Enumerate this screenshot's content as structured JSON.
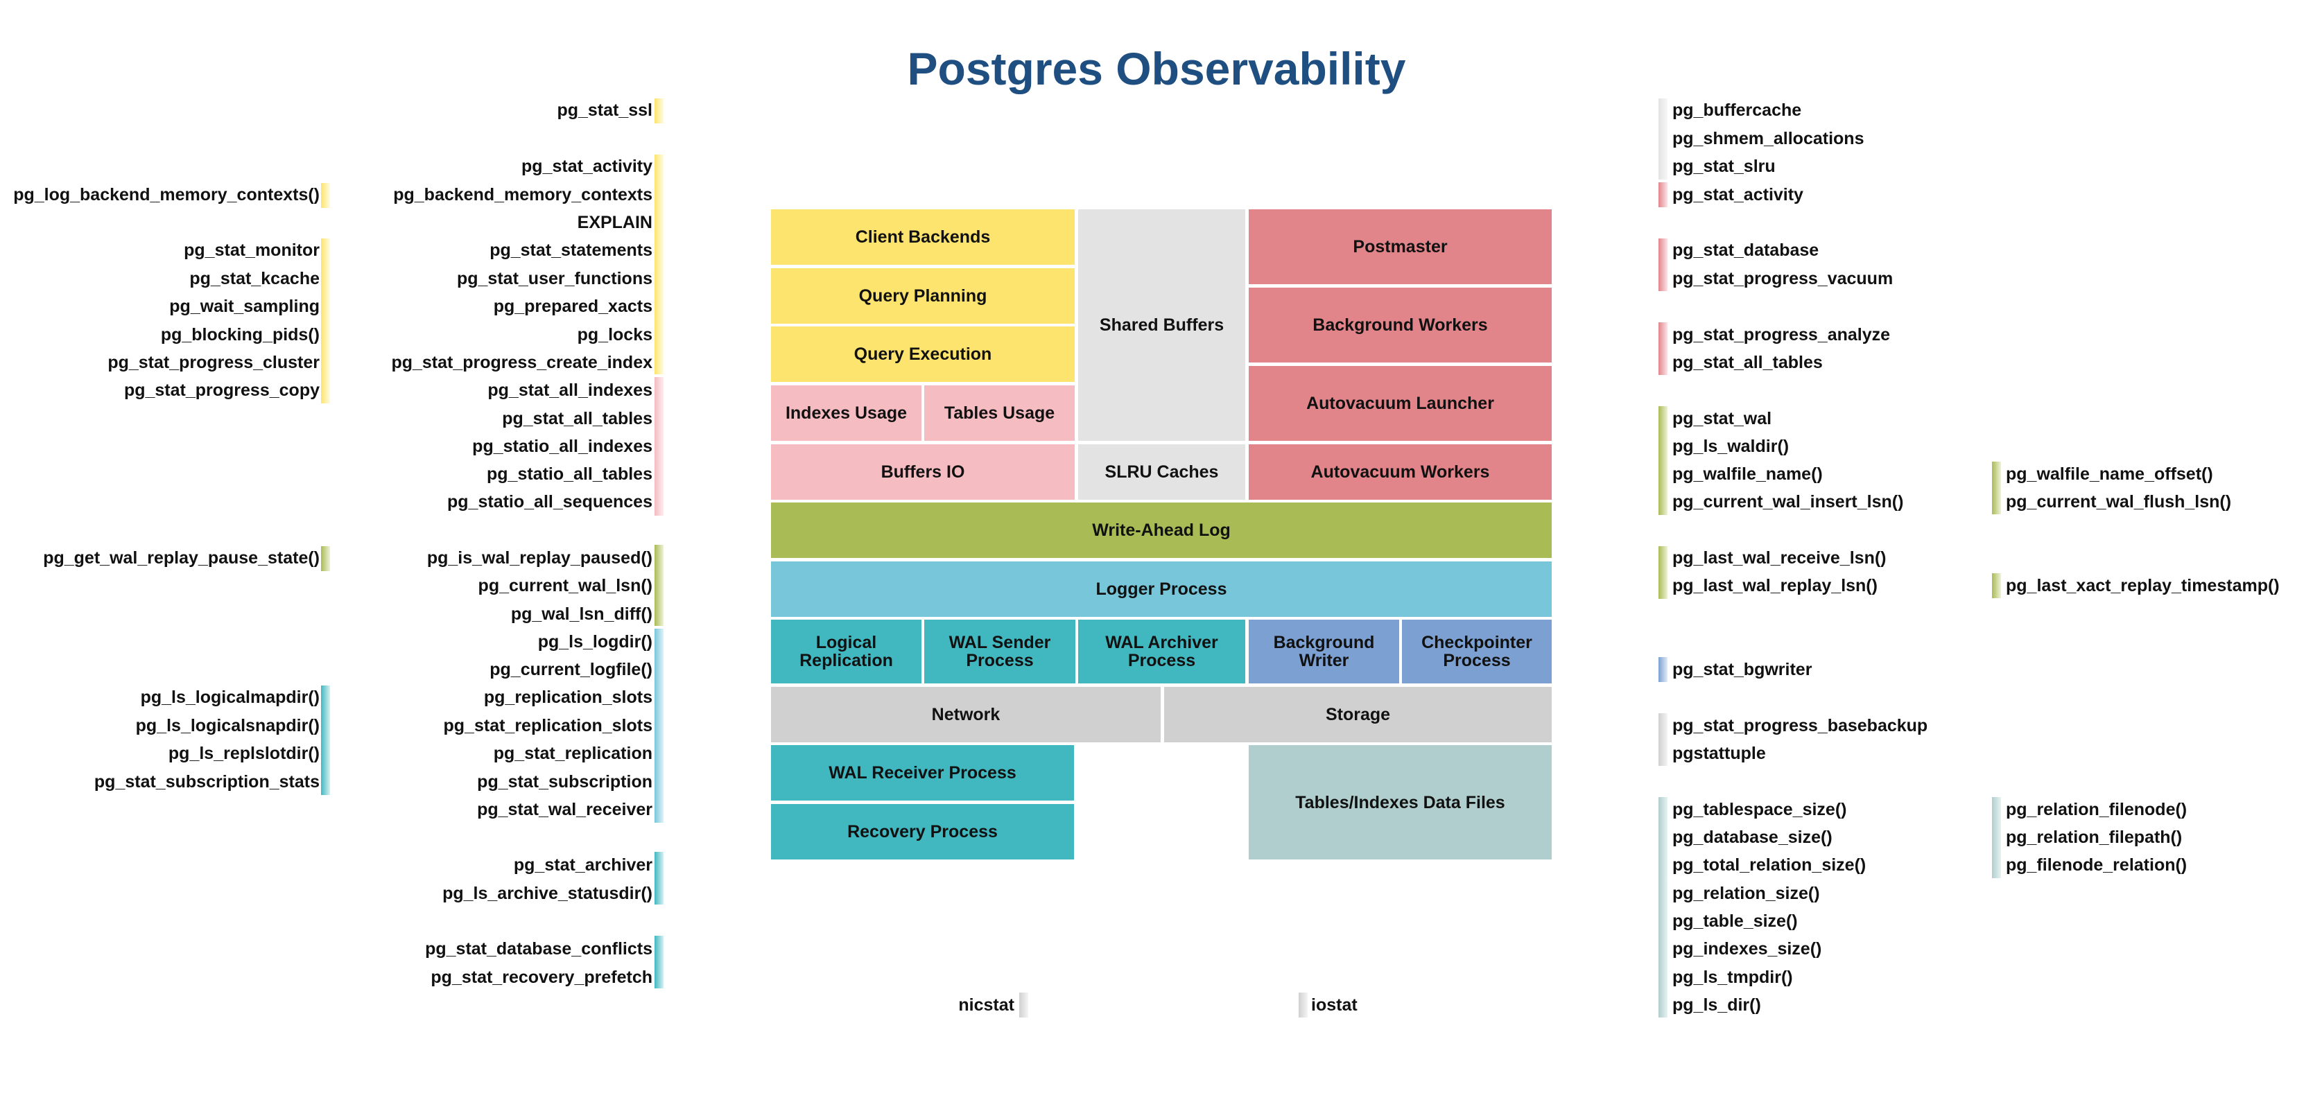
{
  "title": "Postgres Observability",
  "colors": {
    "yellow": "#fde46e",
    "pink": "#f5bcc2",
    "gray": "#e3e3e3",
    "red": "#e1858b",
    "olive": "#a9bb55",
    "sky": "#78c6da",
    "teal": "#41b7c0",
    "blue": "#7ba0d1",
    "net": "#d0d0d0",
    "sage": "#b0cece"
  },
  "blocks": {
    "client_backends": "Client Backends",
    "query_planning": "Query Planning",
    "query_execution": "Query Execution",
    "indexes_usage": "Indexes Usage",
    "tables_usage": "Tables Usage",
    "buffers_io": "Buffers IO",
    "shared_buffers": "Shared Buffers",
    "slru_caches": "SLRU Caches",
    "postmaster": "Postmaster",
    "background_workers": "Background Workers",
    "autovacuum_launcher": "Autovacuum Launcher",
    "autovacuum_workers": "Autovacuum Workers",
    "wal": "Write-Ahead Log",
    "logger": "Logger Process",
    "logical_replication": "Logical Replication",
    "wal_sender": "WAL Sender Process",
    "wal_archiver": "WAL Archiver Process",
    "background_writer": "Background Writer",
    "checkpointer": "Checkpointer Process",
    "network": "Network",
    "storage": "Storage",
    "wal_receiver": "WAL Receiver Process",
    "recovery": "Recovery Process",
    "data_files": "Tables/Indexes Data Files"
  },
  "labels": {
    "far_left": [
      "pg_log_backend_memory_contexts()",
      "pg_stat_monitor",
      "pg_stat_kcache",
      "pg_wait_sampling",
      "pg_blocking_pids()",
      "pg_stat_progress_cluster",
      "pg_stat_progress_copy",
      "pg_get_wal_replay_pause_state()",
      "pg_ls_logicalmapdir()",
      "pg_ls_logicalsnapdir()",
      "pg_ls_replslotdir()",
      "pg_stat_subscription_stats"
    ],
    "left": [
      "pg_stat_ssl",
      "pg_stat_activity",
      "pg_backend_memory_contexts",
      "EXPLAIN",
      "pg_stat_statements",
      "pg_stat_user_functions",
      "pg_prepared_xacts",
      "pg_locks",
      "pg_stat_progress_create_index",
      "pg_stat_all_indexes",
      "pg_stat_all_tables",
      "pg_statio_all_indexes",
      "pg_statio_all_tables",
      "pg_statio_all_sequences",
      "pg_is_wal_replay_paused()",
      "pg_current_wal_lsn()",
      "pg_wal_lsn_diff()",
      "pg_ls_logdir()",
      "pg_current_logfile()",
      "pg_replication_slots",
      "pg_stat_replication_slots",
      "pg_stat_replication",
      "pg_stat_subscription",
      "pg_stat_wal_receiver",
      "pg_stat_archiver",
      "pg_ls_archive_statusdir()",
      "pg_stat_database_conflicts",
      "pg_stat_recovery_prefetch"
    ],
    "bottom": [
      "nicstat",
      "iostat"
    ],
    "right": [
      "pg_buffercache",
      "pg_shmem_allocations",
      "pg_stat_slru",
      "pg_stat_activity",
      "pg_stat_database",
      "pg_stat_progress_vacuum",
      "pg_stat_progress_analyze",
      "pg_stat_all_tables",
      "pg_stat_wal",
      "pg_ls_waldir()",
      "pg_walfile_name()",
      "pg_current_wal_insert_lsn()",
      "pg_last_wal_receive_lsn()",
      "pg_last_wal_replay_lsn()",
      "pg_stat_bgwriter",
      "pg_stat_progress_basebackup",
      "pgstattuple",
      "pg_tablespace_size()",
      "pg_database_size()",
      "pg_total_relation_size()",
      "pg_relation_size()",
      "pg_table_size()",
      "pg_indexes_size()",
      "pg_ls_tmpdir()",
      "pg_ls_dir()"
    ],
    "far_right": [
      "pg_walfile_name_offset()",
      "pg_current_wal_flush_lsn()",
      "pg_last_xact_replay_timestamp()",
      "pg_relation_filenode()",
      "pg_relation_filepath()",
      "pg_filenode_relation()"
    ]
  }
}
